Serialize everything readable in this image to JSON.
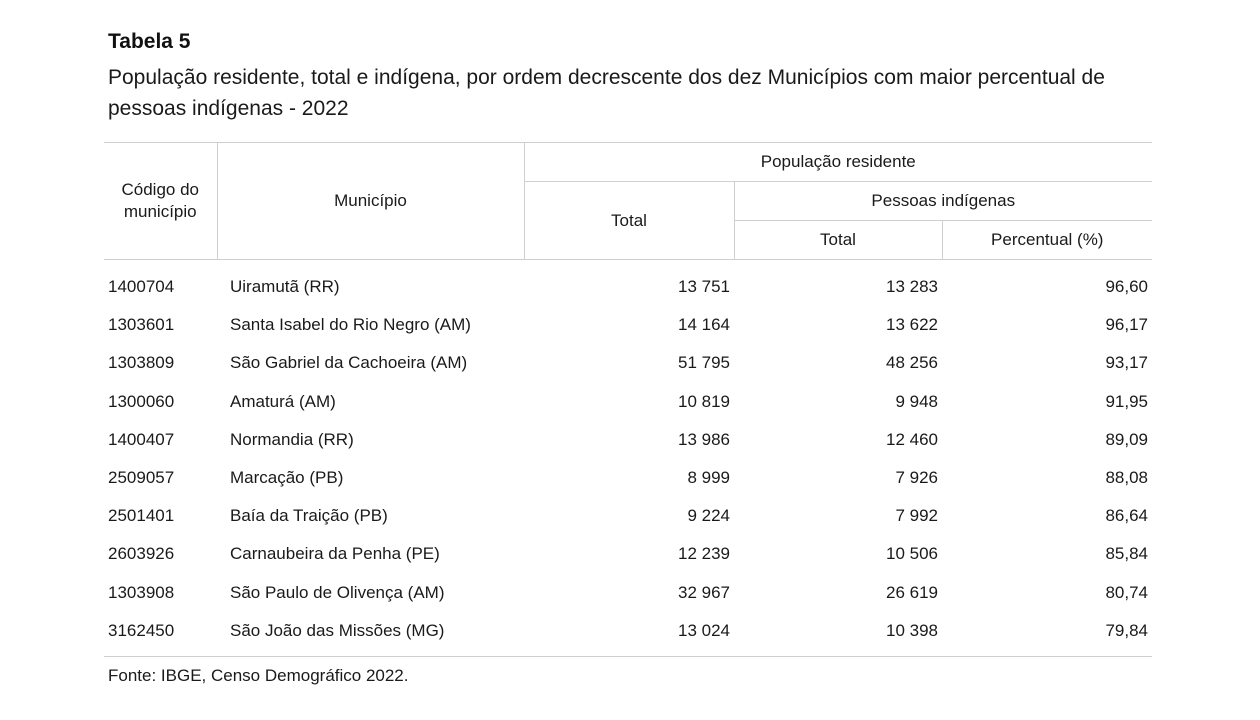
{
  "table": {
    "label": "Tabela 5",
    "title": "População residente, total e indígena, por ordem decrescente dos dez Municípios com maior percentual de pessoas indígenas - 2022",
    "headers": {
      "codigo": "Código do município",
      "municipio": "Município",
      "populacao_residente": "População residente",
      "total": "Total",
      "pessoas_indigenas": "Pessoas indígenas",
      "indigenas_total": "Total",
      "percentual": "Percentual (%)"
    },
    "rows": [
      {
        "codigo": "1400704",
        "municipio": "Uiramutã (RR)",
        "total": "13 751",
        "indigenas_total": "13 283",
        "percentual": "96,60"
      },
      {
        "codigo": "1303601",
        "municipio": "Santa Isabel do Rio Negro (AM)",
        "total": "14 164",
        "indigenas_total": "13 622",
        "percentual": "96,17"
      },
      {
        "codigo": "1303809",
        "municipio": "São Gabriel da Cachoeira (AM)",
        "total": "51 795",
        "indigenas_total": "48 256",
        "percentual": "93,17"
      },
      {
        "codigo": "1300060",
        "municipio": "Amaturá (AM)",
        "total": "10 819",
        "indigenas_total": "9 948",
        "percentual": "91,95"
      },
      {
        "codigo": "1400407",
        "municipio": "Normandia (RR)",
        "total": "13 986",
        "indigenas_total": "12 460",
        "percentual": "89,09"
      },
      {
        "codigo": "2509057",
        "municipio": "Marcação (PB)",
        "total": "8 999",
        "indigenas_total": "7 926",
        "percentual": "88,08"
      },
      {
        "codigo": "2501401",
        "municipio": "Baía da Traição (PB)",
        "total": "9 224",
        "indigenas_total": "7 992",
        "percentual": "86,64"
      },
      {
        "codigo": "2603926",
        "municipio": "Carnaubeira da Penha (PE)",
        "total": "12 239",
        "indigenas_total": "10 506",
        "percentual": "85,84"
      },
      {
        "codigo": "1303908",
        "municipio": "São Paulo de Olivença (AM)",
        "total": "32 967",
        "indigenas_total": "26 619",
        "percentual": "80,74"
      },
      {
        "codigo": "3162450",
        "municipio": "São João das Missões (MG)",
        "total": "13 024",
        "indigenas_total": "10 398",
        "percentual": "79,84"
      }
    ],
    "source": "Fonte: IBGE, Censo Demográfico 2022."
  }
}
